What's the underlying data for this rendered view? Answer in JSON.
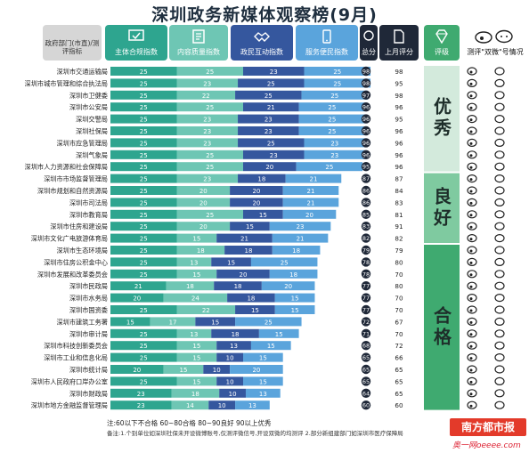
{
  "title": "深圳政务新媒体观察榜(9月)",
  "headers": {
    "dept": "政府部门(市直)/测评指标",
    "c1": "主体合规指数",
    "c2": "内容质量指数",
    "c3": "政民互动指数",
    "c4": "服务便民指数",
    "total": "总分",
    "last": "上月评分",
    "rating": "评级",
    "check": "测评\"双微\"号情况"
  },
  "colors": {
    "c1": "#2ea58f",
    "c2": "#6ec6b4",
    "c3": "#35579e",
    "c4": "#5aa4dc",
    "total": "#1f2838",
    "rating_top": "#d3eadc",
    "rating_mid": "#7fcaa0",
    "rating_low": "#3faa70"
  },
  "ratings": {
    "excellent": "优秀",
    "good": "良好",
    "pass": "合格"
  },
  "legend": "注:60以下不合格  60~80合格  80~90良好  90以上优秀",
  "note": "备注:1.个别单位如深圳社保未开设微博账号,仅测评微信号,开设双微的均测评  2.部分新组建部门如深圳市医疗保障局",
  "logo": "南方都市报",
  "logo_sub": "奥一网oeeee.com",
  "chart_data": {
    "type": "bar",
    "stacked": true,
    "orientation": "horizontal",
    "series_names": [
      "主体合规指数",
      "内容质量指数",
      "政民互动指数",
      "服务便民指数"
    ],
    "columns": [
      "c1",
      "c2",
      "c3",
      "c4"
    ],
    "rows": [
      {
        "name": "深圳市交通运输局",
        "c1": 25,
        "c2": 25,
        "c3": 23,
        "c4": 25,
        "total": 98,
        "last": 98
      },
      {
        "name": "深圳市城市管理和综合执法局",
        "c1": 25,
        "c2": 23,
        "c3": 25,
        "c4": 25,
        "total": 98,
        "last": 95
      },
      {
        "name": "深圳市卫健委",
        "c1": 25,
        "c2": 22,
        "c3": 25,
        "c4": 25,
        "total": 97,
        "last": 98
      },
      {
        "name": "深圳市公安局",
        "c1": 25,
        "c2": 25,
        "c3": 21,
        "c4": 25,
        "total": 96,
        "last": 96
      },
      {
        "name": "深圳交警局",
        "c1": 25,
        "c2": 23,
        "c3": 23,
        "c4": 25,
        "total": 96,
        "last": 95
      },
      {
        "name": "深圳社保局",
        "c1": 25,
        "c2": 23,
        "c3": 23,
        "c4": 25,
        "total": 96,
        "last": 96
      },
      {
        "name": "深圳市应急管理局",
        "c1": 25,
        "c2": 23,
        "c3": 25,
        "c4": 23,
        "total": 96,
        "last": 96
      },
      {
        "name": "深圳气象局",
        "c1": 25,
        "c2": 25,
        "c3": 23,
        "c4": 23,
        "total": 96,
        "last": 96
      },
      {
        "name": "深圳市人力资源和社会保障局",
        "c1": 25,
        "c2": 25,
        "c3": 20,
        "c4": 25,
        "total": 95,
        "last": 96
      },
      {
        "name": "深圳市市场监督管理局",
        "c1": 25,
        "c2": 23,
        "c3": 18,
        "c4": 21,
        "total": 87,
        "last": 87
      },
      {
        "name": "深圳市规划和自然资源局",
        "c1": 25,
        "c2": 20,
        "c3": 20,
        "c4": 21,
        "total": 86,
        "last": 84
      },
      {
        "name": "深圳市司法局",
        "c1": 25,
        "c2": 20,
        "c3": 20,
        "c4": 21,
        "total": 86,
        "last": 83
      },
      {
        "name": "深圳市教育局",
        "c1": 25,
        "c2": 25,
        "c3": 15,
        "c4": 20,
        "total": 85,
        "last": 81
      },
      {
        "name": "深圳市住房和建设局",
        "c1": 25,
        "c2": 20,
        "c3": 15,
        "c4": 23,
        "total": 83,
        "last": 91
      },
      {
        "name": "深圳市文化广电旅游体育局",
        "c1": 25,
        "c2": 15,
        "c3": 21,
        "c4": 21,
        "total": 82,
        "last": 82
      },
      {
        "name": "深圳市生态环境局",
        "c1": 25,
        "c2": 18,
        "c3": 18,
        "c4": 18,
        "total": 79,
        "last": 79
      },
      {
        "name": "深圳市住房公积金中心",
        "c1": 25,
        "c2": 13,
        "c3": 15,
        "c4": 25,
        "total": 78,
        "last": 80
      },
      {
        "name": "深圳市发展和改革委员会",
        "c1": 25,
        "c2": 15,
        "c3": 20,
        "c4": 18,
        "total": 78,
        "last": 70
      },
      {
        "name": "深圳市民政局",
        "c1": 21,
        "c2": 18,
        "c3": 18,
        "c4": 20,
        "total": 77,
        "last": 80
      },
      {
        "name": "深圳市水务局",
        "c1": 20,
        "c2": 24,
        "c3": 18,
        "c4": 15,
        "total": 77,
        "last": 70
      },
      {
        "name": "深圳市国资委",
        "c1": 25,
        "c2": 22,
        "c3": 15,
        "c4": 15,
        "total": 77,
        "last": 70
      },
      {
        "name": "深圳市建筑工务署",
        "c1": 15,
        "c2": 17,
        "c3": 15,
        "c4": 25,
        "total": 72,
        "last": 67
      },
      {
        "name": "深圳市审计局",
        "c1": 25,
        "c2": 13,
        "c3": 18,
        "c4": 15,
        "total": 71,
        "last": 70
      },
      {
        "name": "深圳市科技创新委员会",
        "c1": 25,
        "c2": 15,
        "c3": 13,
        "c4": 15,
        "total": 68,
        "last": 72
      },
      {
        "name": "深圳市工业和信息化局",
        "c1": 25,
        "c2": 15,
        "c3": 10,
        "c4": 15,
        "total": 65,
        "last": 66
      },
      {
        "name": "深圳市统计局",
        "c1": 20,
        "c2": 15,
        "c3": 10,
        "c4": 20,
        "total": 65,
        "last": 65
      },
      {
        "name": "深圳市人民政府口岸办公室",
        "c1": 25,
        "c2": 15,
        "c3": 10,
        "c4": 15,
        "total": 65,
        "last": 65
      },
      {
        "name": "深圳市财政局",
        "c1": 23,
        "c2": 18,
        "c3": 10,
        "c4": 13,
        "total": 64,
        "last": 65
      },
      {
        "name": "深圳市地方金融监督管理局",
        "c1": 23,
        "c2": 14,
        "c3": 10,
        "c4": 13,
        "total": 60,
        "last": 60
      }
    ],
    "rating_groups": [
      {
        "label": "优秀",
        "from": 0,
        "to": 8
      },
      {
        "label": "良好",
        "from": 9,
        "to": 14
      },
      {
        "label": "合格",
        "from": 15,
        "to": 28
      }
    ]
  }
}
